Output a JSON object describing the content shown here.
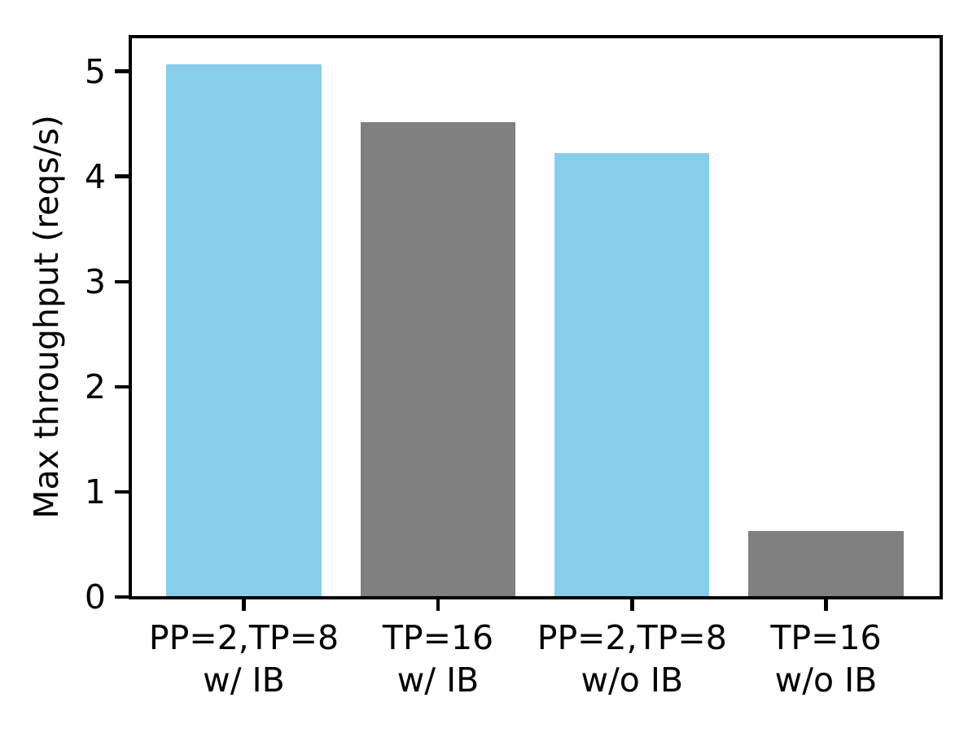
{
  "chart_data": {
    "type": "bar",
    "title": "",
    "xlabel": "",
    "ylabel": "Max throughput (reqs/s)",
    "categories": [
      {
        "line1": "PP=2,TP=8",
        "line2": "w/ IB"
      },
      {
        "line1": "TP=16",
        "line2": "w/ IB"
      },
      {
        "line1": "PP=2,TP=8",
        "line2": "w/o IB"
      },
      {
        "line1": "TP=16",
        "line2": "w/o IB"
      }
    ],
    "values": [
      5.07,
      4.52,
      4.22,
      0.63
    ],
    "bar_colors": [
      "#87ceeb",
      "#808080",
      "#87ceeb",
      "#808080"
    ],
    "yticks": [
      0,
      1,
      2,
      3,
      4,
      5
    ],
    "ylim": [
      0,
      5.33
    ],
    "grid": false,
    "legend": "none",
    "spine_color": "#000000",
    "text_color": "#000000",
    "background_color": "#ffffff"
  }
}
